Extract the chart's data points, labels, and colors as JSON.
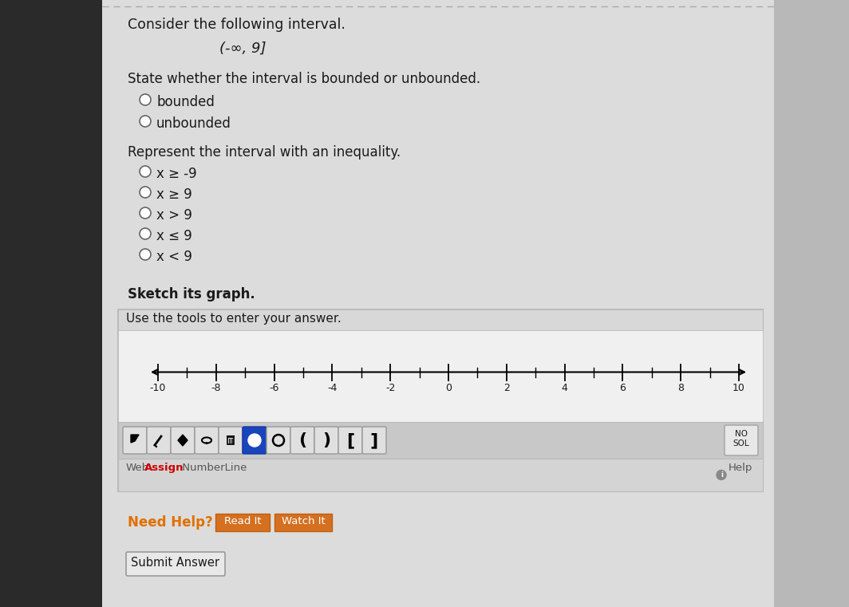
{
  "bg_left": "#2a2a2a",
  "bg_main": "#c8c8c8",
  "bg_shadow_right": "#b0b0b0",
  "page_bg": "#dcdcdc",
  "title_text": "Consider the following interval.",
  "interval_text": "(-∞, 9]",
  "bounded_label": "State whether the interval is bounded or unbounded.",
  "option_bounded": "bounded",
  "option_unbounded": "unbounded",
  "inequality_label": "Represent the interval with an inequality.",
  "inequality_options": [
    "x ≥ -9",
    "x ≥ 9",
    "x > 9",
    "x ≤ 9",
    "x < 9"
  ],
  "sketch_label": "Sketch its graph.",
  "tools_label": "Use the tools to enter your answer.",
  "numberline_ticks": [
    -10,
    -8,
    -6,
    -4,
    -2,
    0,
    2,
    4,
    6,
    8,
    10
  ],
  "help_text": "Help",
  "need_help_text": "Need Help?",
  "read_it_text": "Read It",
  "watch_it_text": "Watch It",
  "submit_text": "Submit Answer",
  "text_color": "#1a1a1a",
  "radio_color": "#ffffff",
  "radio_border": "#666666",
  "link_color": "#cc0000",
  "toolbar_bg": "#c8c8c8",
  "active_tool_bg": "#1a44bb",
  "tool_bg": "#e0e0e0",
  "tool_border": "#999999",
  "nosol_bg": "#e8e8e8",
  "nosol_border": "#aaaaaa",
  "sketch_box_bg": "#e8e8e8",
  "sketch_box_border": "#bbbbbb",
  "toolbar_strip_bg": "#d0d0d0",
  "nl_area_bg": "#f0f0f0",
  "footer_bar_bg": "#d4d4d4",
  "top_border_color": "#aaaaaa"
}
